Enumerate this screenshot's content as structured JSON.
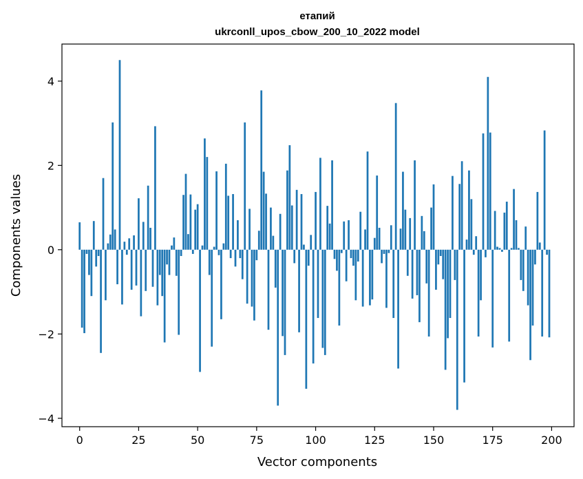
{
  "chart_data": {
    "type": "bar",
    "title_line1": "етапий",
    "title_line2": "ukrconll_upos_cbow_200_10_2022 model",
    "xlabel": "Vector components",
    "ylabel": "Components values",
    "xlim": [
      -7.5,
      209.5
    ],
    "ylim": [
      -4.2,
      4.88
    ],
    "xticks": [
      0,
      25,
      50,
      75,
      100,
      125,
      150,
      175,
      200
    ],
    "yticks": [
      -4,
      -2,
      0,
      2,
      4
    ],
    "bar_color": "#1f77b4",
    "grid": false,
    "x": [
      0,
      1,
      2,
      3,
      4,
      5,
      6,
      7,
      8,
      9,
      10,
      11,
      12,
      13,
      14,
      15,
      16,
      17,
      18,
      19,
      20,
      21,
      22,
      23,
      24,
      25,
      26,
      27,
      28,
      29,
      30,
      31,
      32,
      33,
      34,
      35,
      36,
      37,
      38,
      39,
      40,
      41,
      42,
      43,
      44,
      45,
      46,
      47,
      48,
      49,
      50,
      51,
      52,
      53,
      54,
      55,
      56,
      57,
      58,
      59,
      60,
      61,
      62,
      63,
      64,
      65,
      66,
      67,
      68,
      69,
      70,
      71,
      72,
      73,
      74,
      75,
      76,
      77,
      78,
      79,
      80,
      81,
      82,
      83,
      84,
      85,
      86,
      87,
      88,
      89,
      90,
      91,
      92,
      93,
      94,
      95,
      96,
      97,
      98,
      99,
      100,
      101,
      102,
      103,
      104,
      105,
      106,
      107,
      108,
      109,
      110,
      111,
      112,
      113,
      114,
      115,
      116,
      117,
      118,
      119,
      120,
      121,
      122,
      123,
      124,
      125,
      126,
      127,
      128,
      129,
      130,
      131,
      132,
      133,
      134,
      135,
      136,
      137,
      138,
      139,
      140,
      141,
      142,
      143,
      144,
      145,
      146,
      147,
      148,
      149,
      150,
      151,
      152,
      153,
      154,
      155,
      156,
      157,
      158,
      159,
      160,
      161,
      162,
      163,
      164,
      165,
      166,
      167,
      168,
      169,
      170,
      171,
      172,
      173,
      174,
      175,
      176,
      177,
      178,
      179,
      180,
      181,
      182,
      183,
      184,
      185,
      186,
      187,
      188,
      189,
      190,
      191,
      192,
      193,
      194,
      195,
      196,
      197,
      198,
      199
    ],
    "values": [
      0.65,
      -1.85,
      -1.98,
      -0.1,
      -0.6,
      -1.1,
      0.68,
      -0.4,
      -0.15,
      -2.45,
      1.7,
      -1.2,
      0.15,
      0.36,
      3.02,
      0.48,
      -0.82,
      4.5,
      -1.3,
      0.19,
      -0.12,
      0.27,
      -0.95,
      0.34,
      -0.85,
      1.22,
      -1.58,
      0.66,
      -0.98,
      1.52,
      0.52,
      -0.88,
      2.93,
      -1.32,
      -0.6,
      -1.1,
      -2.2,
      -0.35,
      -0.6,
      0.1,
      0.29,
      -0.62,
      -2.02,
      -0.15,
      1.3,
      1.8,
      0.37,
      1.31,
      -0.1,
      0.95,
      1.08,
      -2.9,
      0.1,
      2.64,
      2.2,
      -0.6,
      -2.3,
      0.07,
      1.86,
      -0.13,
      -1.65,
      0.15,
      2.04,
      1.28,
      -0.2,
      1.32,
      -0.4,
      0.7,
      -0.2,
      -0.7,
      3.02,
      -1.28,
      0.97,
      -1.35,
      -1.68,
      -0.25,
      0.45,
      3.78,
      1.85,
      1.33,
      -1.9,
      1.0,
      0.33,
      -0.9,
      -3.7,
      0.85,
      -2.05,
      -2.5,
      1.88,
      2.48,
      1.05,
      -0.32,
      1.42,
      -1.96,
      1.32,
      0.12,
      -3.3,
      -0.38,
      0.35,
      -2.7,
      1.37,
      -1.62,
      2.18,
      -2.33,
      -2.5,
      1.04,
      0.62,
      2.12,
      -0.22,
      -0.5,
      -1.8,
      -0.08,
      0.67,
      -0.75,
      0.7,
      -0.2,
      -0.38,
      -1.2,
      -0.28,
      0.9,
      -1.35,
      0.48,
      2.33,
      -1.32,
      -1.18,
      0.28,
      1.76,
      0.52,
      -0.32,
      -0.1,
      -1.38,
      -0.08,
      0.58,
      -1.62,
      3.48,
      -2.82,
      0.5,
      1.85,
      0.95,
      -0.62,
      0.75,
      -1.16,
      2.12,
      -1.08,
      -1.72,
      0.8,
      0.44,
      -0.8,
      -2.06,
      1.0,
      1.55,
      -0.95,
      -0.35,
      -0.15,
      -0.7,
      -2.85,
      -2.1,
      -1.62,
      1.75,
      -0.72,
      -3.8,
      1.56,
      2.1,
      -3.15,
      0.24,
      1.88,
      1.2,
      -0.12,
      0.32,
      -2.06,
      -1.2,
      2.76,
      -0.18,
      4.1,
      2.78,
      -2.32,
      0.92,
      0.07,
      0.04,
      -0.05,
      0.88,
      1.14,
      -2.18,
      0.04,
      1.44,
      0.7,
      0.04,
      -0.72,
      -0.98,
      0.55,
      -1.32,
      -2.62,
      -1.8,
      -0.35,
      1.37,
      0.17,
      -2.06,
      2.83,
      -0.12,
      -2.08
    ]
  }
}
